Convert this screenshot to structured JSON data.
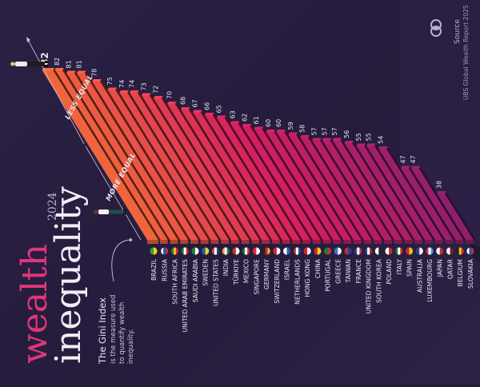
{
  "title": {
    "line1": "wealth",
    "line2": "inequality",
    "year": "2024"
  },
  "description": {
    "heading": "The Gini Index",
    "body_lines": [
      "is the measure used",
      "to quantify wealth",
      "inequality."
    ]
  },
  "axis_labels": {
    "less_equal": "LESS EQUAL",
    "more_equal": "MORE EQUAL"
  },
  "source": {
    "label": "Source",
    "text": "UBS Global Wealth Report 2025"
  },
  "colors": {
    "background": "#251c3c",
    "bar_high": "#f0643c",
    "bar_mid": "#d41e62",
    "bar_low": "#8e1f6e",
    "title_accent": "#e0357a",
    "text_light": "#e8e4ee"
  },
  "chart_data": {
    "type": "bar",
    "title": "Wealth Inequality 2024",
    "subtitle": "The Gini Index is the measure used to quantify wealth inequality.",
    "xlabel": "",
    "ylabel": "Gini Index",
    "orientation": "rotated -90deg (3D perspective bars)",
    "categories": [
      "BRAZIL",
      "RUSSIA",
      "SOUTH AFRICA",
      "UNITED ARAB EMIRATES",
      "SAUDI ARABIA",
      "SWEDEN",
      "UNITED STATES",
      "INDIA",
      "TÜRKIYE",
      "MEXICO",
      "SINGAPORE",
      "GERMANY",
      "SWITZERLAND",
      "ISRAEL",
      "NETHERLANDS",
      "HONG KONG",
      "CHINA",
      "PORTUGAL",
      "GREECE",
      "TAIWAN",
      "FRANCE",
      "UNITED KINGDOM",
      "SOUTH KOREA",
      "POLAND",
      "ITALY",
      "SPAIN",
      "AUSTRALIA",
      "LUXEMBOURG",
      "JAPAN",
      "QATAR",
      "BELGIUM",
      "SLOVAKIA"
    ],
    "values": [
      82,
      82,
      81,
      81,
      78,
      75,
      74,
      74,
      73,
      72,
      70,
      68,
      67,
      66,
      65,
      63,
      62,
      61,
      60,
      60,
      59,
      58,
      57,
      57,
      57,
      56,
      55,
      55,
      54,
      47,
      47,
      38
    ],
    "flags": [
      [
        "#2f9e44",
        "#f2d21b"
      ],
      [
        "#ffffff",
        "#2a4fb0",
        "#d52b2b"
      ],
      [
        "#1a7f3c",
        "#f2b81b",
        "#d52b2b"
      ],
      [
        "#1a7f3c",
        "#ffffff",
        "#d52b2b"
      ],
      [
        "#1a7f3c",
        "#ffffff"
      ],
      [
        "#2a5db0",
        "#f2d21b"
      ],
      [
        "#c8454a",
        "#ffffff",
        "#2a3f86"
      ],
      [
        "#f28c28",
        "#ffffff",
        "#1a8a3c"
      ],
      [
        "#d62828",
        "#ffffff"
      ],
      [
        "#1a7f3c",
        "#ffffff",
        "#d52b2b"
      ],
      [
        "#e0283a",
        "#ffffff"
      ],
      [
        "#222222",
        "#d52b2b",
        "#f2c21b"
      ],
      [
        "#d62828",
        "#ffffff"
      ],
      [
        "#ffffff",
        "#2a5db0"
      ],
      [
        "#c8282e",
        "#ffffff",
        "#2a4f96"
      ],
      [
        "#d62828",
        "#ffffff"
      ],
      [
        "#d62828",
        "#f2d21b"
      ],
      [
        "#1a7f3c",
        "#d52b2b"
      ],
      [
        "#3a78c0",
        "#ffffff"
      ],
      [
        "#d62828",
        "#2a3f96"
      ],
      [
        "#2a4fa0",
        "#ffffff",
        "#d52b2b"
      ],
      [
        "#2a3f86",
        "#ffffff",
        "#c8282e"
      ],
      [
        "#ffffff",
        "#222222"
      ],
      [
        "#ffffff",
        "#d62828"
      ],
      [
        "#1a7f3c",
        "#ffffff",
        "#d52b2b"
      ],
      [
        "#c8282e",
        "#f2c21b"
      ],
      [
        "#2a3f86",
        "#ffffff"
      ],
      [
        "#e0283a",
        "#ffffff",
        "#4aa0e0"
      ],
      [
        "#ffffff",
        "#c8282e"
      ],
      [
        "#ffffff",
        "#7a1a3c"
      ],
      [
        "#222222",
        "#f2c21b",
        "#d52b2b"
      ],
      [
        "#ffffff",
        "#2a4fb0",
        "#d52b2b"
      ]
    ],
    "ylim": [
      0,
      100
    ],
    "grid": false,
    "legend": "none",
    "annotations": [
      "LESS EQUAL",
      "MORE EQUAL",
      "82 (highlighted, Brazil)"
    ]
  }
}
